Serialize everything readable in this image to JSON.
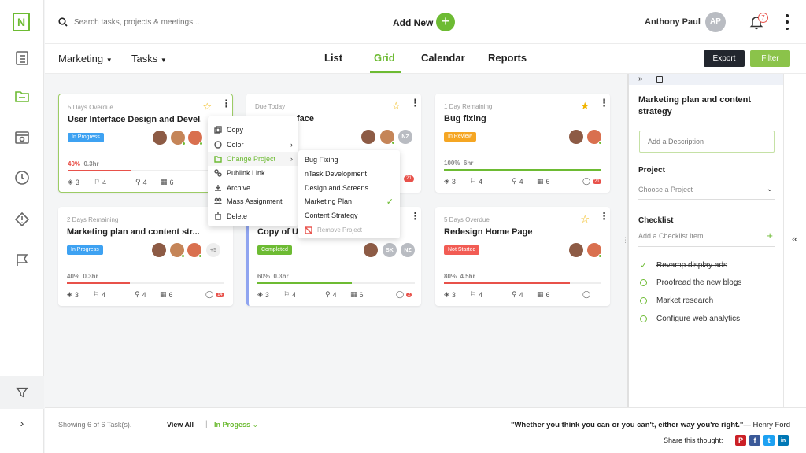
{
  "app": {
    "logo_letter": "N"
  },
  "search": {
    "placeholder": "Search tasks, projects & meetings..."
  },
  "header": {
    "add_new_label": "Add New",
    "user_name": "Anthony Paul",
    "user_initials": "AP",
    "notifications_count": "7"
  },
  "subbar": {
    "project_label": "Marketing",
    "scope_label": "Tasks",
    "tabs": [
      "List",
      "Grid",
      "Calendar",
      "Reports"
    ],
    "active_tab": "Grid",
    "export_label": "Export",
    "filter_label": "Filter"
  },
  "cards": [
    {
      "status": "5 Days Overdue",
      "title": "User Interface Design and Devel...",
      "badge": "In Progress",
      "progress_pct": "40%",
      "hours": "0.3hr",
      "progress": 0.4,
      "sub": "3",
      "tasks": "4",
      "attach": "4",
      "meet": "6",
      "comments": ""
    },
    {
      "status": "Due Today",
      "title": "face",
      "badge": "",
      "progress_pct": "",
      "hours": "",
      "progress": 0,
      "sub": "",
      "tasks": "",
      "attach": "",
      "meet": "",
      "comments": "21",
      "avatar_text": "NZ"
    },
    {
      "status": "1 Day Remaining",
      "title": "Bug fixing",
      "badge": "In Review",
      "progress_pct": "100%",
      "hours": "6hr",
      "progress": 1.0,
      "sub": "3",
      "tasks": "4",
      "attach": "4",
      "meet": "6",
      "comments": "21"
    },
    {
      "status": "2 Days Remaining",
      "title": "Marketing plan and content str...",
      "badge": "In Progress",
      "progress_pct": "40%",
      "hours": "0.3hr",
      "progress": 0.4,
      "sub": "3",
      "tasks": "4",
      "attach": "4",
      "meet": "6",
      "comments": "14",
      "extra_avatars": "+5"
    },
    {
      "status": "",
      "title": "Copy of Us",
      "badge": "Completed",
      "progress_pct": "60%",
      "hours": "0.3hr",
      "progress": 0.6,
      "sub": "3",
      "tasks": "4",
      "attach": "4",
      "meet": "6",
      "comments": "2",
      "avatar_text_1": "SK",
      "avatar_text_2": "NZ"
    },
    {
      "status": "5 Days Overdue",
      "title": "Redesign Home Page",
      "badge": "Not Started",
      "progress_pct": "80%",
      "hours": "4.5hr",
      "progress": 0.8,
      "sub": "3",
      "tasks": "4",
      "attach": "4",
      "meet": "6",
      "comments": ""
    }
  ],
  "context_menu": {
    "items": [
      "Copy",
      "Color",
      "Change Project",
      "Publink Link",
      "Archive",
      "Mass Assignment",
      "Delete"
    ]
  },
  "project_submenu": {
    "items": [
      "Bug Fixing",
      "nTask Development",
      "Design and Screens",
      "Marketing Plan",
      "Content Strategy",
      "Remove Project"
    ]
  },
  "panel": {
    "title": "Marketing plan and content strategy",
    "description_placeholder": "Add a Description",
    "project_label": "Project",
    "project_placeholder": "Choose a Project",
    "checklist_label": "Checklist",
    "checklist_placeholder": "Add a Checklist Item",
    "checklist": [
      "Revamp display ads",
      "Proofread the new blogs",
      "Market research",
      "Configure web analytics"
    ]
  },
  "footer": {
    "showing": "Showing 6 of 6 Task(s).",
    "view_all": "View All",
    "separator": "|",
    "in_progress": "In Progess",
    "quote": "\"Whether you think you can or you can't, either way you're right.\"",
    "author": "— Henry Ford",
    "share_label": "Share this thought:",
    "share_icons": [
      "P",
      "f",
      "t",
      "in"
    ]
  },
  "colors": {
    "accent": "#6dbb33",
    "progress_red": "#e8514a",
    "badge_blue": "#3ea2f2",
    "badge_orange": "#f5a623",
    "badge_red": "#f25c54",
    "dark_button": "#22262e"
  }
}
